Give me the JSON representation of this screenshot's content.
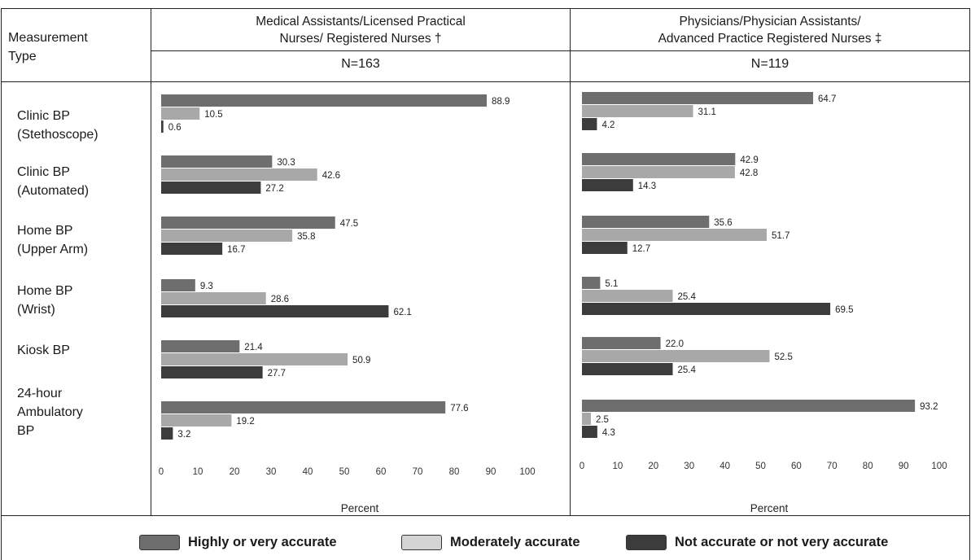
{
  "header": {
    "measurement_col": [
      "Measurement",
      "Type"
    ],
    "groups": [
      {
        "title_lines": [
          "Medical Assistants/Licensed Practical",
          "Nurses/ Registered Nurses †"
        ],
        "n": "N=163"
      },
      {
        "title_lines": [
          "Physicians/Physician Assistants/",
          "Advanced Practice Registered Nurses ‡"
        ],
        "n": "N=119"
      }
    ]
  },
  "row_labels": [
    [
      "Clinic BP",
      "(Stethoscope)"
    ],
    [
      "Clinic BP",
      "(Automated)"
    ],
    [
      "Home BP",
      "(Upper Arm)"
    ],
    [
      "Home BP",
      "(Wrist)"
    ],
    [
      "Kiosk BP"
    ],
    [
      "24-hour",
      "Ambulatory",
      "BP"
    ]
  ],
  "colors": {
    "highly": "#6e6e6e",
    "moderately": "#a8a8a8",
    "not": "#3c3c3c",
    "legend_moderately": "#d4d4d4"
  },
  "chart_data": [
    {
      "type": "bar",
      "orientation": "horizontal",
      "categories": [
        "Clinic BP (Stethoscope)",
        "Clinic BP (Automated)",
        "Home BP (Upper Arm)",
        "Home BP (Wrist)",
        "Kiosk BP",
        "24-hour Ambulatory BP"
      ],
      "series": [
        {
          "name": "Highly or very accurate",
          "values": [
            88.9,
            30.3,
            47.5,
            9.3,
            21.4,
            77.6
          ]
        },
        {
          "name": "Moderately accurate",
          "values": [
            10.5,
            42.6,
            35.8,
            28.6,
            50.9,
            19.2
          ]
        },
        {
          "name": "Not accurate or not very accurate",
          "values": [
            0.6,
            27.2,
            16.7,
            62.1,
            27.7,
            3.2
          ]
        }
      ],
      "value_labels": [
        [
          "88.9",
          "10.5",
          "0.6"
        ],
        [
          "30.3",
          "42.6",
          "27.2"
        ],
        [
          "47.5",
          "35.8",
          "16.7"
        ],
        [
          "9.3",
          "28.6",
          "62.1"
        ],
        [
          "21.4",
          "50.9",
          "27.7"
        ],
        [
          "77.6",
          "19.2",
          "3.2"
        ]
      ],
      "xlabel": "Percent",
      "xlim": [
        0,
        100
      ],
      "xticks": [
        0,
        10,
        20,
        30,
        40,
        50,
        60,
        70,
        80,
        90,
        100
      ],
      "grid": false
    },
    {
      "type": "bar",
      "orientation": "horizontal",
      "categories": [
        "Clinic BP (Stethoscope)",
        "Clinic BP (Automated)",
        "Home BP (Upper Arm)",
        "Home BP (Wrist)",
        "Kiosk BP",
        "24-hour Ambulatory BP"
      ],
      "series": [
        {
          "name": "Highly or very accurate",
          "values": [
            64.7,
            42.9,
            35.6,
            5.1,
            22.0,
            93.2
          ]
        },
        {
          "name": "Moderately accurate",
          "values": [
            31.1,
            42.8,
            51.7,
            25.4,
            52.5,
            2.5
          ]
        },
        {
          "name": "Not accurate or not very accurate",
          "values": [
            4.2,
            14.3,
            12.7,
            69.5,
            25.4,
            4.3
          ]
        }
      ],
      "value_labels": [
        [
          "64.7",
          "31.1",
          "4.2"
        ],
        [
          "42.9",
          "42.8",
          "14.3"
        ],
        [
          "35.6",
          "51.7",
          "12.7"
        ],
        [
          "5.1",
          "25.4",
          "69.5"
        ],
        [
          "22.0",
          "52.5",
          "25.4"
        ],
        [
          "93.2",
          "2.5",
          "4.3"
        ]
      ],
      "xlabel": "Percent",
      "xlim": [
        0,
        100
      ],
      "xticks": [
        0,
        10,
        20,
        30,
        40,
        50,
        60,
        70,
        80,
        90,
        100
      ],
      "grid": false
    }
  ],
  "legend": {
    "items": [
      {
        "label": "Highly or very accurate",
        "color_key": "highly"
      },
      {
        "label": "Moderately accurate",
        "color_key": "legend_moderately"
      },
      {
        "label": "Not accurate or not very accurate",
        "color_key": "not"
      }
    ]
  }
}
